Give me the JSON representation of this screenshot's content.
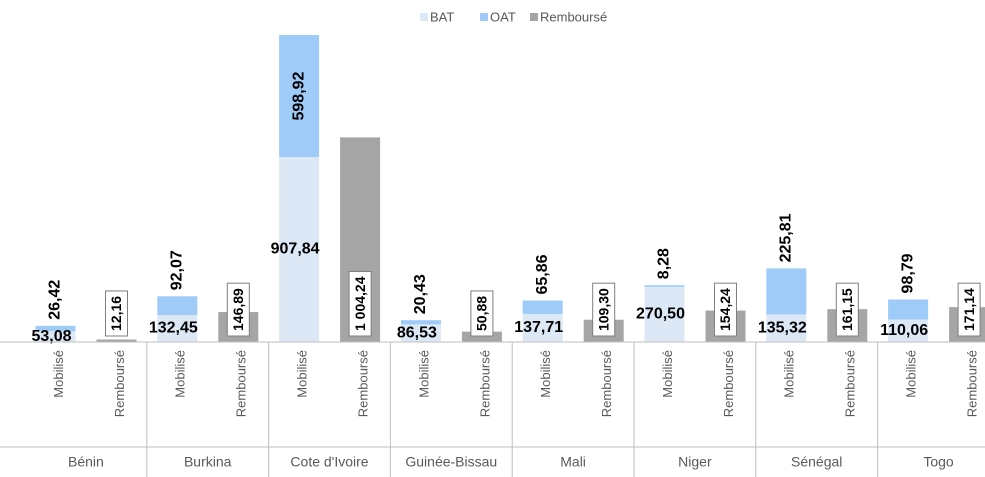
{
  "chart_data": {
    "type": "bar",
    "stacked": true,
    "groups": [
      "Bénin",
      "Burkina",
      "Cote d'Ivoire",
      "Guinée-Bissau",
      "Mali",
      "Niger",
      "Sénégal",
      "Togo"
    ],
    "categories": [
      "Mobilisé",
      "Remboursé",
      "Mobilisé",
      "Remboursé",
      "Mobilisé",
      "Remboursé",
      "Mobilisé",
      "Remboursé",
      "Mobilisé",
      "Remboursé",
      "Mobilisé",
      "Remboursé",
      "Mobilisé",
      "Remboursé",
      "Mobilisé",
      "Remboursé"
    ],
    "legend": "top",
    "series": [
      {
        "name": "BAT",
        "color": "#dce8f6",
        "values": [
          53.08,
          null,
          132.45,
          null,
          907.84,
          null,
          86.53,
          null,
          137.71,
          null,
          270.5,
          null,
          135.32,
          null,
          110.06,
          null
        ],
        "value_labels": [
          "53,08",
          null,
          "132,45",
          null,
          "907,84",
          null,
          "86,53",
          null,
          "137,71",
          null,
          "270,50",
          null,
          "135,32",
          null,
          "110,06",
          null
        ]
      },
      {
        "name": "OAT",
        "color": "#9fcbf8",
        "values": [
          26.42,
          null,
          92.07,
          null,
          598.92,
          null,
          20.43,
          null,
          65.86,
          null,
          8.28,
          null,
          225.81,
          null,
          98.79,
          null
        ],
        "value_labels": [
          "26,42",
          null,
          "92,07",
          null,
          "598,92",
          null,
          "20,43",
          null,
          "65,86",
          null,
          "8,28",
          null,
          "225,81",
          null,
          "98,79",
          null
        ]
      },
      {
        "name": "Remboursé",
        "color": "#a5a5a5",
        "values": [
          null,
          12.16,
          null,
          146.89,
          null,
          1004.24,
          null,
          50.88,
          null,
          109.3,
          null,
          154.24,
          null,
          161.15,
          null,
          171.14
        ],
        "value_labels": [
          null,
          "12,16",
          null,
          "146,89",
          null,
          "1 004,24",
          null,
          "50,88",
          null,
          "109,30",
          null,
          "154,24",
          null,
          "161,15",
          null,
          "171,14"
        ]
      }
    ]
  }
}
